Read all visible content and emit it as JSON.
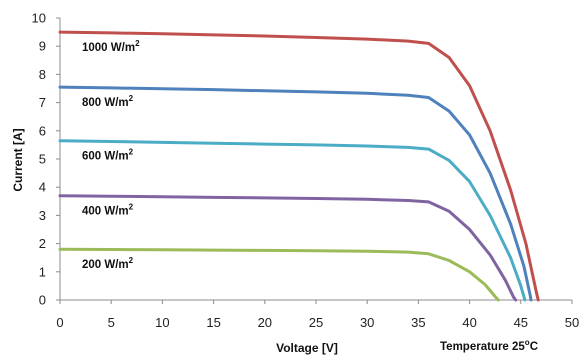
{
  "chart_data": {
    "type": "line",
    "xlabel": "Voltage [V]",
    "ylabel": "Current [A]",
    "xlim": [
      0,
      50
    ],
    "ylim": [
      0,
      10
    ],
    "x_ticks": [
      0,
      5,
      10,
      15,
      20,
      25,
      30,
      35,
      40,
      45,
      50
    ],
    "y_ticks": [
      0,
      1,
      2,
      3,
      4,
      5,
      6,
      7,
      8,
      9,
      10
    ],
    "grid": false,
    "legend": "none",
    "annotation": {
      "text": "Temperature 25",
      "sup": "o",
      "unit": "C"
    },
    "series": [
      {
        "name": "1000 W/m",
        "name_sup": "2",
        "color": "#c0504d",
        "points": [
          [
            0,
            9.5
          ],
          [
            5,
            9.47
          ],
          [
            10,
            9.44
          ],
          [
            15,
            9.4
          ],
          [
            20,
            9.36
          ],
          [
            25,
            9.31
          ],
          [
            30,
            9.25
          ],
          [
            34,
            9.18
          ],
          [
            36,
            9.1
          ],
          [
            38,
            8.6
          ],
          [
            40,
            7.6
          ],
          [
            42,
            6.0
          ],
          [
            44,
            3.9
          ],
          [
            45.5,
            2.0
          ],
          [
            46.5,
            0.3
          ],
          [
            46.7,
            0
          ]
        ]
      },
      {
        "name": "800 W/m",
        "name_sup": "2",
        "color": "#4f81bd",
        "points": [
          [
            0,
            7.55
          ],
          [
            5,
            7.52
          ],
          [
            10,
            7.49
          ],
          [
            15,
            7.46
          ],
          [
            20,
            7.42
          ],
          [
            25,
            7.38
          ],
          [
            30,
            7.33
          ],
          [
            34,
            7.26
          ],
          [
            36,
            7.18
          ],
          [
            38,
            6.7
          ],
          [
            40,
            5.85
          ],
          [
            42,
            4.5
          ],
          [
            44,
            2.7
          ],
          [
            45.3,
            1.2
          ],
          [
            45.9,
            0.2
          ],
          [
            46.0,
            0
          ]
        ]
      },
      {
        "name": "600 W/m",
        "name_sup": "2",
        "color": "#4bacc6",
        "points": [
          [
            0,
            5.65
          ],
          [
            5,
            5.62
          ],
          [
            10,
            5.59
          ],
          [
            15,
            5.56
          ],
          [
            20,
            5.53
          ],
          [
            25,
            5.5
          ],
          [
            30,
            5.46
          ],
          [
            34,
            5.41
          ],
          [
            36,
            5.35
          ],
          [
            38,
            4.95
          ],
          [
            40,
            4.2
          ],
          [
            42,
            3.0
          ],
          [
            44,
            1.5
          ],
          [
            45.0,
            0.5
          ],
          [
            45.4,
            0
          ]
        ]
      },
      {
        "name": "400 W/m",
        "name_sup": "2",
        "color": "#8064a2",
        "points": [
          [
            0,
            3.7
          ],
          [
            5,
            3.68
          ],
          [
            10,
            3.66
          ],
          [
            15,
            3.64
          ],
          [
            20,
            3.62
          ],
          [
            25,
            3.6
          ],
          [
            30,
            3.57
          ],
          [
            34,
            3.53
          ],
          [
            36,
            3.48
          ],
          [
            38,
            3.15
          ],
          [
            40,
            2.5
          ],
          [
            42,
            1.6
          ],
          [
            43.5,
            0.7
          ],
          [
            44.3,
            0.1
          ],
          [
            44.5,
            0
          ]
        ]
      },
      {
        "name": "200 W/m",
        "name_sup": "2",
        "color": "#9bbb59",
        "points": [
          [
            0,
            1.8
          ],
          [
            5,
            1.79
          ],
          [
            10,
            1.78
          ],
          [
            15,
            1.77
          ],
          [
            20,
            1.76
          ],
          [
            25,
            1.75
          ],
          [
            30,
            1.73
          ],
          [
            34,
            1.7
          ],
          [
            36,
            1.64
          ],
          [
            38,
            1.4
          ],
          [
            40,
            1.0
          ],
          [
            41.5,
            0.55
          ],
          [
            42.5,
            0.12
          ],
          [
            42.8,
            0
          ]
        ]
      }
    ]
  }
}
